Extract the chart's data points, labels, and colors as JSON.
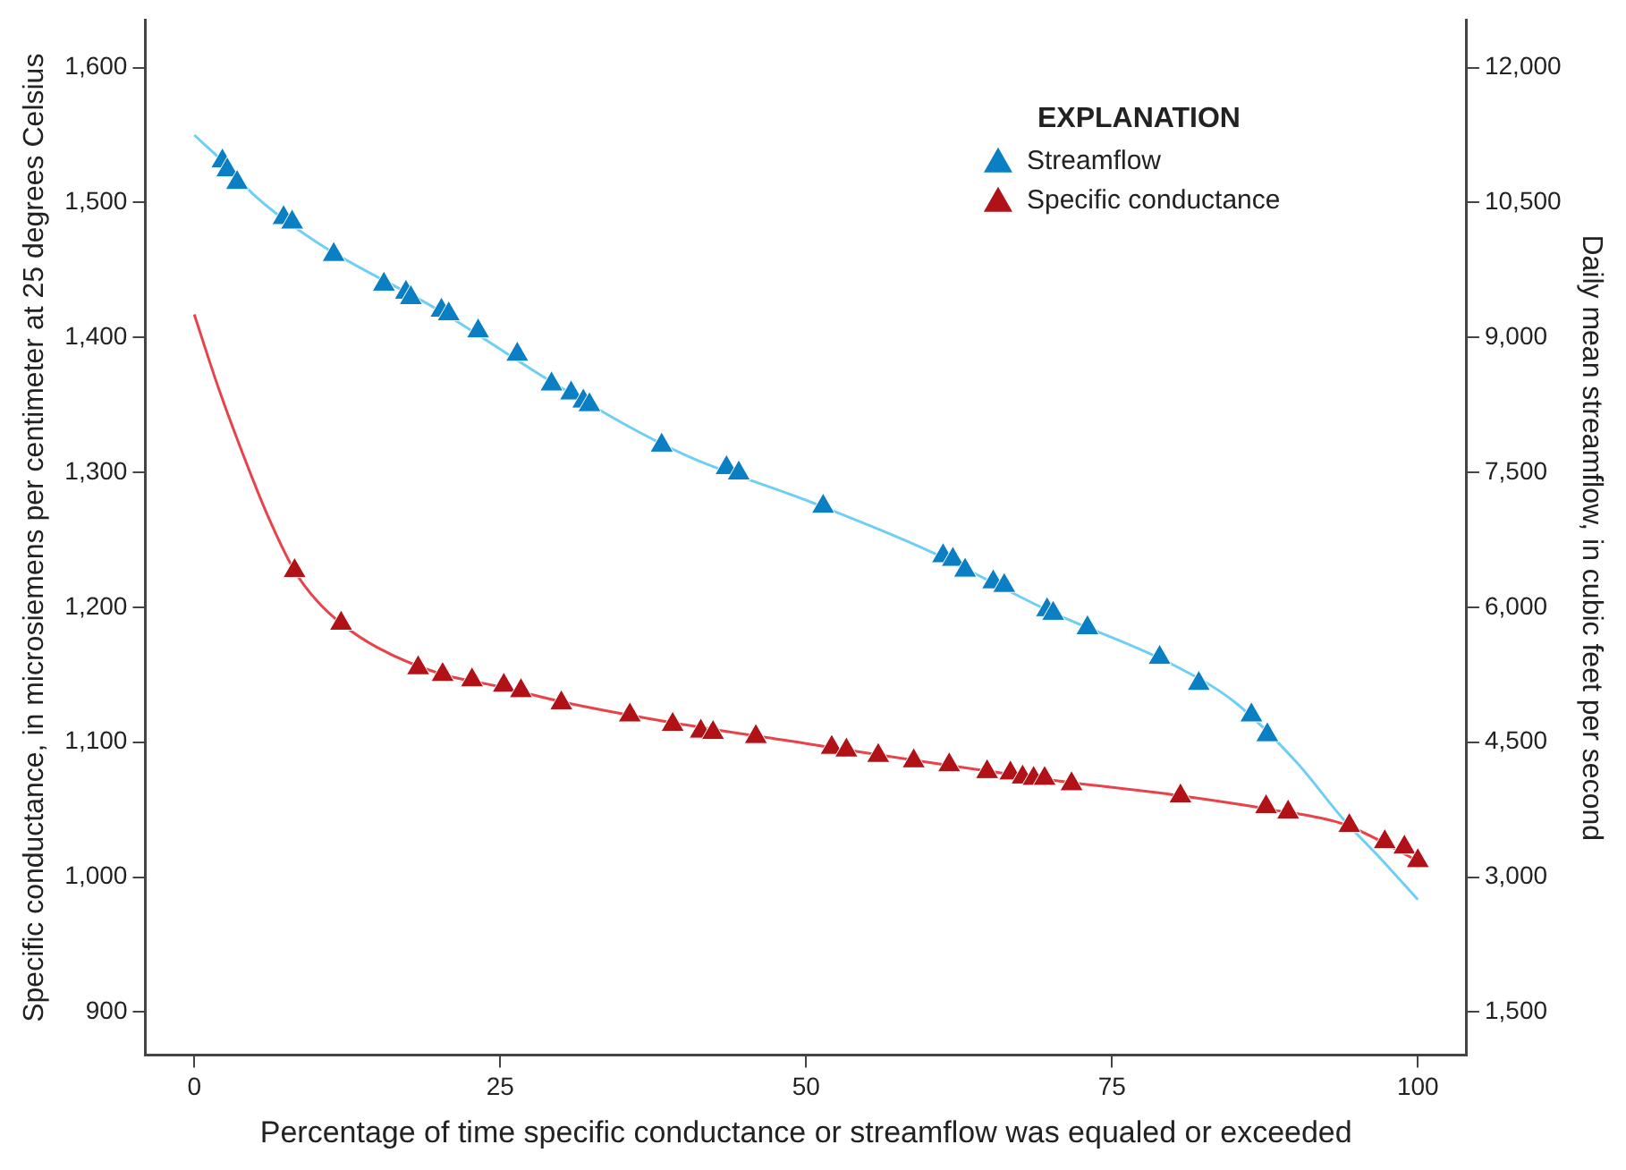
{
  "chart_data": {
    "type": "scatter",
    "xlabel": "Percentage of time specific conductance or streamflow was equaled or exceeded",
    "ylabel": "Specific conductance, in microsiemens per centimeter at 25 degrees Celsius",
    "y2label": "Daily mean streamflow, in cubic feet per second",
    "legend_title": "EXPLANATION",
    "legend": "top right",
    "marker": "triangle",
    "xlim": [
      -4,
      104
    ],
    "xticks": [
      0,
      25,
      50,
      75,
      100
    ],
    "ylim": [
      868,
      1635
    ],
    "yticks": [
      900,
      {
        "value": 1000,
        "label": "1,000"
      },
      {
        "value": 1100,
        "label": "1,100"
      },
      {
        "value": 1200,
        "label": "1,200"
      },
      {
        "value": 1300,
        "label": "1,300"
      },
      {
        "value": 1400,
        "label": "1,400"
      },
      {
        "value": 1500,
        "label": "1,500"
      },
      {
        "value": 1600,
        "label": "1,600"
      }
    ],
    "y2lim": [
      1020,
      12525
    ],
    "y2ticks": [
      {
        "value": 1500,
        "label": "1,500"
      },
      {
        "value": 3000,
        "label": "3,000"
      },
      {
        "value": 4500,
        "label": "4,500"
      },
      {
        "value": 6000,
        "label": "6,000"
      },
      {
        "value": 7500,
        "label": "7,500"
      },
      {
        "value": 9000,
        "label": "9,000"
      },
      {
        "value": 10500,
        "label": "10,500"
      },
      {
        "value": 12000,
        "label": "12,000"
      }
    ],
    "series": [
      {
        "type": "line",
        "marker": "none",
        "axis": "y2",
        "color": "#6dcff6",
        "x": [
          0,
          2.3,
          5,
          10,
          20,
          30,
          40,
          50,
          60,
          70,
          80,
          85,
          90,
          94,
          97,
          100
        ],
        "values": [
          11250,
          10960,
          10570,
          10060,
          9300,
          8440,
          7700,
          7190,
          6630,
          5950,
          5360,
          4950,
          4290,
          3630,
          3200,
          2750
        ]
      },
      {
        "type": "line",
        "marker": "none",
        "color": "#e8434a",
        "x": [
          0,
          2,
          4,
          6,
          8.2,
          10,
          12,
          15,
          20,
          25,
          30,
          40,
          50,
          60,
          70,
          80,
          88,
          94,
          100
        ],
        "values": [
          1417,
          1362,
          1313,
          1268,
          1227,
          1205,
          1188,
          1170,
          1151,
          1141,
          1130,
          1113,
          1099,
          1085,
          1072,
          1061,
          1050,
          1039,
          1012
        ]
      },
      {
        "name": "Streamflow",
        "axis": "y2",
        "color": "#0a7fc4",
        "x": [
          2.3,
          2.7,
          3.5,
          7.3,
          8.0,
          11.4,
          15.5,
          17.3,
          17.7,
          20.2,
          20.8,
          23.2,
          26.4,
          29.2,
          30.8,
          31.8,
          32.3,
          38.2,
          43.5,
          44.5,
          51.4,
          61.2,
          62.0,
          63.0,
          65.3,
          66.2,
          69.7,
          70.2,
          73.0,
          78.9,
          82.1,
          86.4,
          87.7
        ],
        "values": [
          10960,
          10860,
          10720,
          10330,
          10280,
          9920,
          9590,
          9500,
          9440,
          9300,
          9260,
          9070,
          8810,
          8480,
          8380,
          8290,
          8250,
          7800,
          7550,
          7490,
          7120,
          6570,
          6530,
          6410,
          6280,
          6240,
          5970,
          5930,
          5770,
          5440,
          5150,
          4800,
          4580
        ]
      },
      {
        "name": "Specific conductance",
        "color": "#b01217",
        "x": [
          8.2,
          12.0,
          18.3,
          20.3,
          22.7,
          25.3,
          26.7,
          30.0,
          35.6,
          39.1,
          41.4,
          42.4,
          45.9,
          52.1,
          53.3,
          55.9,
          58.8,
          61.7,
          64.8,
          66.7,
          67.7,
          68.6,
          69.5,
          71.7,
          80.6,
          87.6,
          89.4,
          94.4,
          97.3,
          98.9,
          100
        ],
        "values": [
          1227,
          1188,
          1155,
          1150,
          1146,
          1142,
          1138,
          1129,
          1120,
          1113,
          1108,
          1107,
          1104,
          1096,
          1094,
          1090,
          1086,
          1083,
          1078,
          1077,
          1074,
          1073,
          1073,
          1069,
          1060,
          1052,
          1048,
          1038,
          1026,
          1022,
          1012
        ]
      }
    ]
  }
}
